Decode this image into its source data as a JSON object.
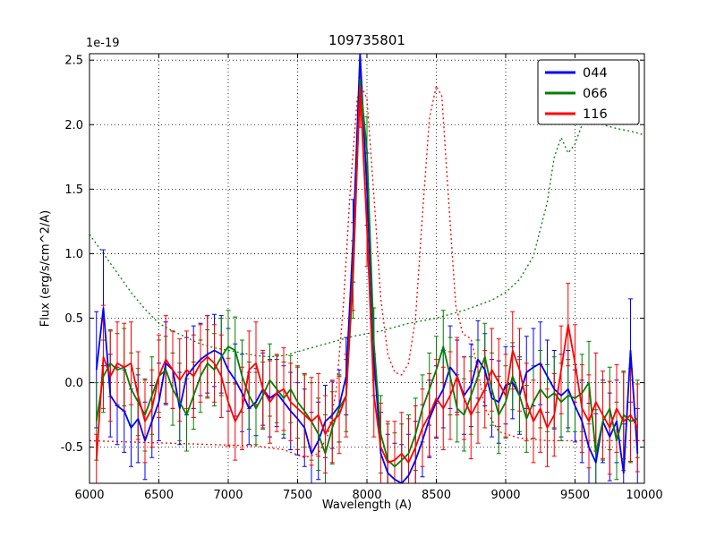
{
  "chart_data": {
    "type": "line",
    "title": "109735801",
    "offset_text": "1e-19",
    "xlabel": "Wavelength (A)",
    "ylabel": "Flux (erg/s/cm^2/A)",
    "xlim": [
      6000,
      10000
    ],
    "ylim": [
      -0.78,
      2.55
    ],
    "grid": true,
    "legend_position": "upper right",
    "xticks": [
      6000,
      6500,
      7000,
      7500,
      8000,
      8500,
      9000,
      9500,
      10000
    ],
    "xtick_labels": [
      "6000",
      "6500",
      "7000",
      "7500",
      "8000",
      "8500",
      "9000",
      "9500",
      "10000"
    ],
    "yticks": [
      -0.5,
      0.0,
      0.5,
      1.0,
      1.5,
      2.0,
      2.5
    ],
    "ytick_labels": [
      "-0.5",
      "0.0",
      "0.5",
      "1.0",
      "1.5",
      "2.0",
      "2.5"
    ],
    "x": [
      6050,
      6100,
      6150,
      6200,
      6250,
      6300,
      6350,
      6400,
      6450,
      6500,
      6550,
      6600,
      6650,
      6700,
      6750,
      6800,
      6850,
      6900,
      6950,
      7000,
      7050,
      7100,
      7150,
      7200,
      7250,
      7300,
      7350,
      7400,
      7450,
      7500,
      7550,
      7600,
      7650,
      7700,
      7750,
      7800,
      7850,
      7900,
      7950,
      8000,
      8050,
      8100,
      8150,
      8200,
      8250,
      8300,
      8350,
      8400,
      8450,
      8500,
      8550,
      8600,
      8650,
      8700,
      8750,
      8800,
      8850,
      8900,
      8950,
      9000,
      9050,
      9100,
      9150,
      9200,
      9250,
      9300,
      9350,
      9400,
      9450,
      9500,
      9550,
      9600,
      9650,
      9700,
      9750,
      9800,
      9850,
      9900,
      9950
    ],
    "series": [
      {
        "name": "044",
        "color": "#0000ff",
        "values": [
          0.1,
          0.58,
          -0.1,
          -0.18,
          -0.22,
          -0.35,
          -0.28,
          -0.45,
          -0.3,
          -0.15,
          0.15,
          0.1,
          -0.2,
          0.05,
          0.12,
          0.18,
          0.22,
          0.25,
          0.22,
          0.1,
          0.02,
          -0.08,
          -0.2,
          -0.15,
          -0.05,
          -0.12,
          -0.08,
          -0.15,
          -0.22,
          -0.28,
          -0.35,
          -0.55,
          -0.45,
          -0.3,
          -0.25,
          -0.18,
          0.05,
          1.1,
          2.55,
          1.5,
          0.2,
          -0.55,
          -0.7,
          -0.75,
          -0.78,
          -0.72,
          -0.6,
          -0.45,
          -0.28,
          -0.15,
          -0.05,
          0.12,
          0.05,
          -0.1,
          -0.02,
          0.18,
          0.1,
          -0.12,
          -0.15,
          -0.02,
          0.0,
          -0.1,
          0.08,
          0.12,
          0.15,
          0.05,
          -0.05,
          -0.1,
          -0.05,
          -0.18,
          -0.3,
          -0.5,
          -0.62,
          -0.3,
          -0.42,
          -0.3,
          -0.7,
          0.25,
          -0.55
        ],
        "errors": [
          0.45,
          0.45,
          0.32,
          0.3,
          0.32,
          0.3,
          0.34,
          0.3,
          0.28,
          0.3,
          0.32,
          0.3,
          0.28,
          0.3,
          0.32,
          0.28,
          0.3,
          0.28,
          0.3,
          0.32,
          0.28,
          0.3,
          0.28,
          0.26,
          0.28,
          0.3,
          0.26,
          0.28,
          0.3,
          0.28,
          0.3,
          0.32,
          0.3,
          0.28,
          0.26,
          0.28,
          0.3,
          0.32,
          0.3,
          0.28,
          0.3,
          0.32,
          0.3,
          0.28,
          0.3,
          0.32,
          0.3,
          0.28,
          0.3,
          0.28,
          0.3,
          0.32,
          0.28,
          0.3,
          0.32,
          0.3,
          0.28,
          0.3,
          0.32,
          0.3,
          0.28,
          0.3,
          0.28,
          0.3,
          0.32,
          0.28,
          0.3,
          0.32,
          0.3,
          0.28,
          0.32,
          0.34,
          0.38,
          0.32,
          0.34,
          0.32,
          0.38,
          0.4,
          0.35
        ]
      },
      {
        "name": "066",
        "color": "#008000",
        "values": [
          -0.3,
          0.05,
          0.15,
          0.1,
          0.12,
          -0.05,
          -0.15,
          -0.25,
          -0.1,
          0.05,
          0.1,
          -0.05,
          -0.15,
          -0.25,
          -0.1,
          0.05,
          0.15,
          0.1,
          0.2,
          0.28,
          0.25,
          0.05,
          -0.1,
          -0.2,
          -0.1,
          0.02,
          -0.05,
          -0.12,
          -0.05,
          -0.15,
          -0.22,
          -0.3,
          -0.4,
          -0.55,
          -0.35,
          -0.2,
          -0.1,
          0.8,
          2.35,
          1.8,
          0.3,
          -0.4,
          -0.6,
          -0.65,
          -0.6,
          -0.55,
          -0.4,
          -0.2,
          -0.05,
          0.1,
          0.28,
          0.05,
          -0.2,
          -0.25,
          -0.1,
          0.05,
          0.2,
          -0.05,
          -0.25,
          -0.15,
          0.05,
          -0.1,
          -0.28,
          -0.15,
          -0.05,
          -0.12,
          -0.08,
          -0.15,
          -0.1,
          -0.12,
          -0.08,
          0.0,
          -0.55,
          -0.3,
          -0.2,
          -0.45,
          -0.25,
          -0.3,
          -0.28
        ],
        "errors": [
          0.3,
          0.28,
          0.26,
          0.28,
          0.3,
          0.28,
          0.26,
          0.28,
          0.3,
          0.28,
          0.26,
          0.28,
          0.3,
          0.28,
          0.26,
          0.28,
          0.26,
          0.28,
          0.3,
          0.28,
          0.26,
          0.28,
          0.26,
          0.28,
          0.26,
          0.28,
          0.26,
          0.28,
          0.26,
          0.28,
          0.28,
          0.3,
          0.28,
          0.3,
          0.28,
          0.26,
          0.28,
          0.3,
          0.28,
          0.26,
          0.28,
          0.3,
          0.28,
          0.26,
          0.28,
          0.3,
          0.28,
          0.26,
          0.28,
          0.26,
          0.28,
          0.3,
          0.26,
          0.28,
          0.3,
          0.28,
          0.26,
          0.28,
          0.3,
          0.28,
          0.26,
          0.28,
          0.26,
          0.28,
          0.3,
          0.26,
          0.28,
          0.3,
          0.28,
          0.26,
          0.3,
          0.32,
          0.34,
          0.3,
          0.32,
          0.3,
          0.34,
          0.32,
          0.3
        ]
      },
      {
        "name": "116",
        "color": "#ff0000",
        "values": [
          -0.6,
          0.2,
          0.05,
          0.15,
          0.12,
          0.15,
          -0.1,
          -0.3,
          -0.2,
          0.05,
          0.18,
          0.1,
          0.02,
          0.1,
          0.05,
          0.15,
          0.2,
          0.15,
          0.05,
          -0.15,
          -0.3,
          -0.2,
          0.1,
          0.15,
          -0.05,
          -0.15,
          -0.08,
          -0.05,
          -0.15,
          -0.2,
          -0.25,
          -0.3,
          -0.25,
          -0.4,
          -0.3,
          -0.25,
          -0.1,
          0.9,
          2.3,
          1.2,
          -0.1,
          -0.5,
          -0.62,
          -0.6,
          -0.55,
          -0.62,
          -0.5,
          -0.35,
          -0.25,
          -0.12,
          -0.2,
          -0.1,
          0.05,
          -0.12,
          -0.25,
          -0.15,
          -0.05,
          0.1,
          0.0,
          -0.1,
          0.25,
          0.1,
          -0.15,
          -0.3,
          -0.2,
          -0.35,
          -0.25,
          0.1,
          0.45,
          0.15,
          -0.2,
          -0.3,
          -0.15,
          -0.25,
          -0.35,
          -0.2,
          -0.3,
          -0.25,
          -0.35
        ],
        "errors": [
          0.2,
          0.4,
          0.35,
          0.32,
          0.34,
          0.32,
          0.34,
          0.32,
          0.3,
          0.32,
          0.34,
          0.3,
          0.32,
          0.3,
          0.32,
          0.3,
          0.32,
          0.3,
          0.32,
          0.34,
          0.3,
          0.32,
          0.3,
          0.32,
          0.3,
          0.32,
          0.3,
          0.32,
          0.3,
          0.32,
          0.32,
          0.34,
          0.32,
          0.3,
          0.32,
          0.3,
          0.32,
          0.34,
          0.32,
          0.3,
          0.32,
          0.34,
          0.32,
          0.3,
          0.32,
          0.34,
          0.32,
          0.3,
          0.32,
          0.3,
          0.32,
          0.34,
          0.3,
          0.32,
          0.34,
          0.32,
          0.3,
          0.32,
          0.34,
          0.32,
          0.3,
          0.32,
          0.3,
          0.32,
          0.34,
          0.3,
          0.32,
          0.34,
          0.32,
          0.3,
          0.34,
          0.36,
          0.38,
          0.34,
          0.36,
          0.34,
          0.38,
          0.36,
          0.34
        ]
      }
    ],
    "overlays": [
      {
        "name": "green-dotted",
        "color": "#008000",
        "style": "dotted",
        "points": [
          [
            6000,
            1.15
          ],
          [
            6100,
            1.0
          ],
          [
            6200,
            0.85
          ],
          [
            6300,
            0.7
          ],
          [
            6400,
            0.57
          ],
          [
            6500,
            0.46
          ],
          [
            6600,
            0.4
          ],
          [
            6700,
            0.35
          ],
          [
            6800,
            0.3
          ],
          [
            6900,
            0.27
          ],
          [
            7000,
            0.25
          ],
          [
            7100,
            0.23
          ],
          [
            7200,
            0.21
          ],
          [
            7300,
            0.2
          ],
          [
            7400,
            0.21
          ],
          [
            7500,
            0.24
          ],
          [
            7600,
            0.27
          ],
          [
            7700,
            0.3
          ],
          [
            7800,
            0.33
          ],
          [
            7900,
            0.36
          ],
          [
            8000,
            0.38
          ],
          [
            8100,
            0.4
          ],
          [
            8200,
            0.43
          ],
          [
            8300,
            0.46
          ],
          [
            8400,
            0.48
          ],
          [
            8500,
            0.5
          ],
          [
            8600,
            0.53
          ],
          [
            8700,
            0.56
          ],
          [
            8800,
            0.6
          ],
          [
            8900,
            0.64
          ],
          [
            9000,
            0.7
          ],
          [
            9100,
            0.8
          ],
          [
            9200,
            0.98
          ],
          [
            9300,
            1.4
          ],
          [
            9350,
            1.75
          ],
          [
            9400,
            1.9
          ],
          [
            9450,
            1.78
          ],
          [
            9500,
            1.85
          ],
          [
            9550,
            2.0
          ],
          [
            9600,
            2.05
          ],
          [
            9700,
            2.0
          ],
          [
            9800,
            1.97
          ],
          [
            9900,
            1.95
          ],
          [
            10000,
            1.92
          ]
        ]
      },
      {
        "name": "red-dotted",
        "color": "#ff0000",
        "style": "dotted",
        "points": [
          [
            6000,
            -0.45
          ],
          [
            6300,
            -0.46
          ],
          [
            6600,
            -0.47
          ],
          [
            6900,
            -0.48
          ],
          [
            7200,
            -0.49
          ],
          [
            7400,
            -0.52
          ],
          [
            7550,
            -0.58
          ],
          [
            7650,
            -0.55
          ],
          [
            7720,
            -0.4
          ],
          [
            7780,
            -0.05
          ],
          [
            7830,
            0.6
          ],
          [
            7880,
            1.5
          ],
          [
            7930,
            2.2
          ],
          [
            7960,
            2.3
          ],
          [
            8000,
            2.2
          ],
          [
            8050,
            1.45
          ],
          [
            8100,
            0.65
          ],
          [
            8150,
            0.22
          ],
          [
            8200,
            0.08
          ],
          [
            8250,
            0.06
          ],
          [
            8300,
            0.15
          ],
          [
            8350,
            0.5
          ],
          [
            8400,
            1.3
          ],
          [
            8450,
            2.05
          ],
          [
            8500,
            2.3
          ],
          [
            8540,
            2.22
          ],
          [
            8590,
            1.4
          ],
          [
            8640,
            0.6
          ],
          [
            8690,
            0.38
          ],
          [
            8750,
            0.34
          ],
          [
            8800,
            0.1
          ],
          [
            8850,
            -0.2
          ],
          [
            8950,
            -0.38
          ],
          [
            9100,
            -0.43
          ],
          [
            9300,
            -0.45
          ],
          [
            9600,
            -0.45
          ],
          [
            10000,
            -0.45
          ]
        ]
      }
    ]
  }
}
